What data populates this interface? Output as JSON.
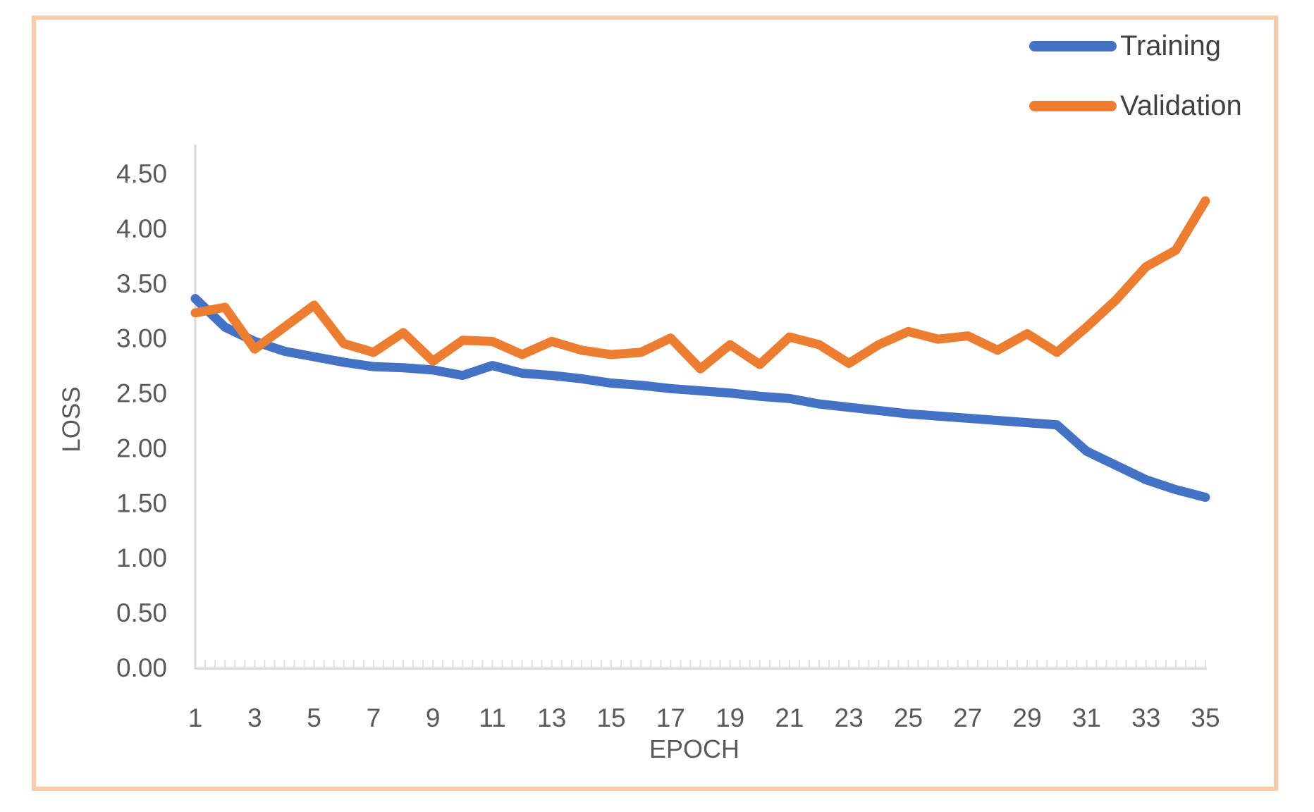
{
  "legend": {
    "items": [
      {
        "label": "Training",
        "color": "#4472C4"
      },
      {
        "label": "Validation",
        "color": "#ED7D31"
      }
    ]
  },
  "axes": {
    "y_label": "LOSS",
    "x_label": "EPOCH",
    "y_tick_labels": [
      "0.00",
      "0.50",
      "1.00",
      "1.50",
      "2.00",
      "2.50",
      "3.00",
      "3.50",
      "4.00",
      "4.50"
    ],
    "x_tick_labels": [
      "1",
      "3",
      "5",
      "7",
      "9",
      "11",
      "13",
      "15",
      "17",
      "19",
      "21",
      "23",
      "25",
      "27",
      "29",
      "31",
      "33",
      "35"
    ]
  },
  "chart_data": {
    "type": "line",
    "title": "",
    "xlabel": "EPOCH",
    "ylabel": "LOSS",
    "x": [
      1,
      2,
      3,
      4,
      5,
      6,
      7,
      8,
      9,
      10,
      11,
      12,
      13,
      14,
      15,
      16,
      17,
      18,
      19,
      20,
      21,
      22,
      23,
      24,
      25,
      26,
      27,
      28,
      29,
      30,
      31,
      32,
      33,
      34,
      35
    ],
    "series": [
      {
        "name": "Training",
        "color": "#4472C4",
        "values": [
          3.36,
          3.1,
          2.97,
          2.88,
          2.83,
          2.78,
          2.74,
          2.73,
          2.71,
          2.66,
          2.75,
          2.68,
          2.66,
          2.63,
          2.59,
          2.57,
          2.54,
          2.52,
          2.5,
          2.47,
          2.45,
          2.4,
          2.37,
          2.34,
          2.31,
          2.29,
          2.27,
          2.25,
          2.23,
          2.21,
          1.97,
          1.84,
          1.71,
          1.62,
          1.55
        ]
      },
      {
        "name": "Validation",
        "color": "#ED7D31",
        "values": [
          3.23,
          3.28,
          2.9,
          3.1,
          3.3,
          2.95,
          2.87,
          3.05,
          2.79,
          2.98,
          2.97,
          2.85,
          2.97,
          2.89,
          2.85,
          2.87,
          3.0,
          2.72,
          2.94,
          2.76,
          3.01,
          2.94,
          2.77,
          2.94,
          3.06,
          2.99,
          3.02,
          2.89,
          3.04,
          2.87,
          3.1,
          3.35,
          3.65,
          3.8,
          4.25
        ]
      }
    ],
    "ylim": [
      0,
      4.5
    ],
    "y_tick_step": 0.5,
    "x_tick_step": 2,
    "grid": false,
    "legend_position": "top-right"
  },
  "colors": {
    "frame_border": "#F8CBAD",
    "axis_line": "#d9d9d9",
    "minor_tick": "#e2e2e2",
    "tick_label": "#595959",
    "axis_title": "#595959",
    "legend_text": "#404040",
    "background": "#ffffff"
  }
}
